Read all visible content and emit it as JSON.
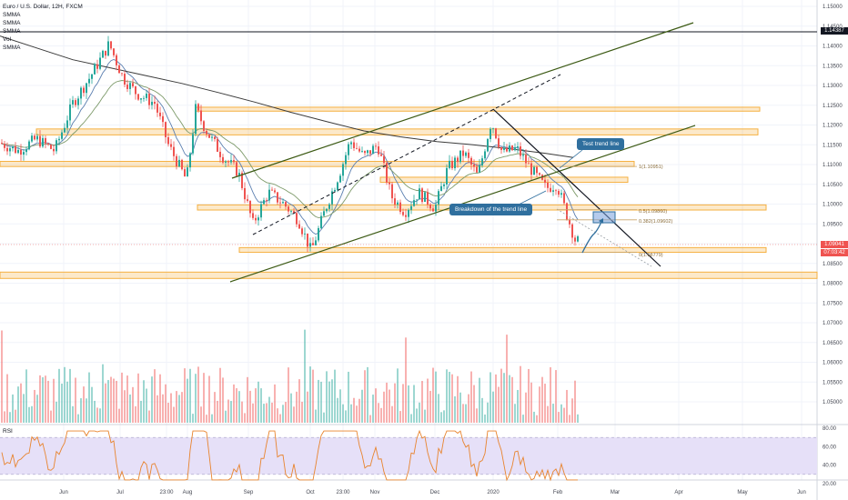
{
  "legend": {
    "title": "Euro / U.S. Dollar, 12H, FXCM",
    "indicators": [
      "SMMA",
      "SMMA",
      "SMMA",
      "Vol",
      "SMMA"
    ]
  },
  "rsi_label": "RSI",
  "annotations": {
    "test_trend_line": "Test trend line",
    "breakdown": "Breakdown of the trend line"
  },
  "fib_labels": {
    "f1": "1(1.10951)",
    "f05": "0.5(1.09860)",
    "f0382": "0.382(1.09602)",
    "f0": "0(1.08779)"
  },
  "price_badges": {
    "horizontal_line": "1.14387",
    "current_price": "1.09041",
    "countdown": "07:03:42"
  },
  "price_axis_labels": [
    "1.15000",
    "1.14500",
    "1.14000",
    "1.13500",
    "1.13000",
    "1.12500",
    "1.12000",
    "1.11500",
    "1.11000",
    "1.10500",
    "1.10000",
    "1.09500",
    "1.09000",
    "1.08500",
    "1.08000",
    "1.07500",
    "1.07000",
    "1.06500",
    "1.06000",
    "1.05500",
    "1.05000"
  ],
  "rsi_axis_labels": [
    "80.00",
    "60.00",
    "40.00",
    "20.00"
  ],
  "time_axis_labels": [
    "Jun",
    "Jul",
    "23:00",
    "Aug",
    "Sep",
    "Oct",
    "23:00",
    "Nov",
    "Dec",
    "2020",
    "Feb",
    "Mar",
    "Apr",
    "May",
    "Jun"
  ],
  "colors": {
    "up": "#26a69a",
    "down": "#ef5350",
    "zone": "#f5b041",
    "channel": "#3c5a14",
    "rsi_line": "#e8842e",
    "rsi_band": "#e6e0f8",
    "badge_red": "#ef5350",
    "badge_black": "#131722",
    "bubble": "#2f6f9e"
  },
  "chart_data": {
    "type": "candlestick",
    "symbol": "EURUSD",
    "timeframe": "12H",
    "price_range": [
      1.045,
      1.1513
    ],
    "rsi_range": [
      20,
      80
    ],
    "current_price": 1.09041,
    "fib_levels": [
      {
        "ratio": 1,
        "price": 1.10951
      },
      {
        "ratio": 0.5,
        "price": 1.0986
      },
      {
        "ratio": 0.382,
        "price": 1.09602
      },
      {
        "ratio": 0,
        "price": 1.08779
      }
    ],
    "support_resistance_zones": [
      [
        1.1235,
        1.1245
      ],
      [
        1.1175,
        1.119
      ],
      [
        1.1095,
        1.1108
      ],
      [
        1.1055,
        1.1068
      ],
      [
        1.0985,
        1.0998
      ],
      [
        1.0878,
        1.089
      ],
      [
        1.0812,
        1.0828
      ]
    ]
  }
}
